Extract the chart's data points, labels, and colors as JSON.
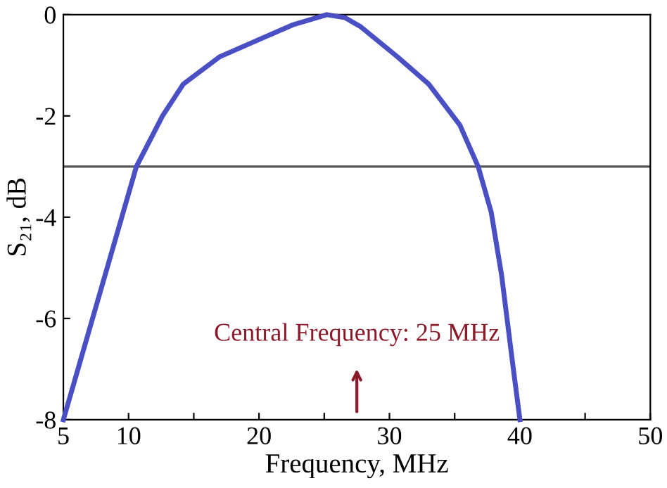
{
  "chart_data": {
    "type": "line",
    "xlabel": "Frequency, MHz",
    "ylabel": "S₂₁, dB",
    "x": [
      5,
      10.6,
      12.6,
      14.2,
      17,
      20.2,
      22.6,
      25.2,
      26.6,
      27.8,
      30.6,
      33,
      35.4,
      36.8,
      37.8,
      38.6,
      39.4,
      40
    ],
    "series": [
      {
        "color": "#4a4fc4",
        "values": [
          -8,
          -3,
          -2,
          -1.37,
          -0.83,
          -0.47,
          -0.2,
          0,
          -0.06,
          -0.24,
          -0.83,
          -1.37,
          -2.18,
          -3,
          -3.9,
          -5.15,
          -6.8,
          -8
        ]
      }
    ],
    "xlim": [
      5,
      50
    ],
    "xticks": [
      5,
      10,
      {
        "value": 15,
        "label": null
      },
      20,
      {
        "value": 25,
        "label": null
      },
      30,
      {
        "value": 35,
        "label": null
      },
      40,
      {
        "value": 45,
        "label": null
      },
      50
    ],
    "ylim": [
      -8,
      0
    ],
    "yticks": [
      -8,
      -6,
      -4,
      -2,
      0
    ],
    "ref_lines": [
      {
        "axis": "y",
        "value": -3,
        "color": "#555555"
      }
    ],
    "annotations": [
      "Central Frequency: 25 MHz"
    ],
    "grid": false,
    "marker": "none",
    "line_style": "solid"
  }
}
